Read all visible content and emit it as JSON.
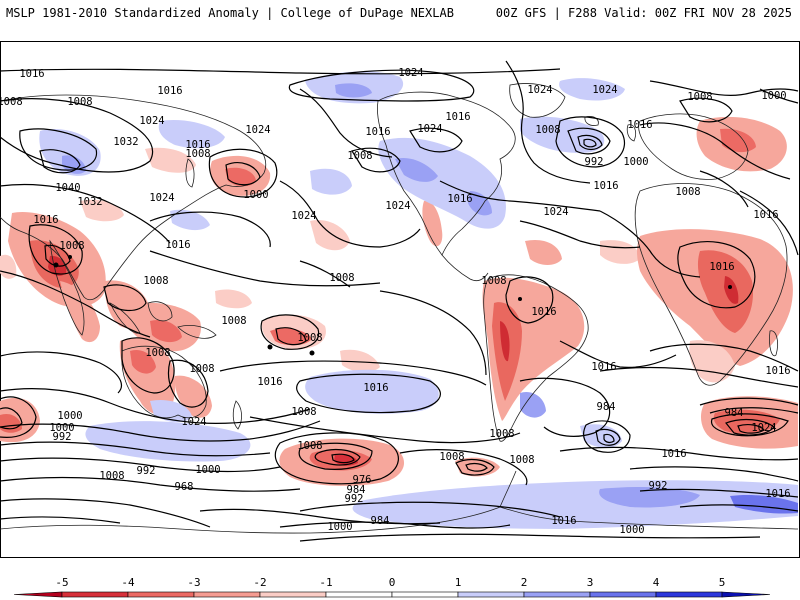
{
  "header": {
    "left": "MSLP 1981-2010 Standardized Anomaly | College of DuPage NEXLAB",
    "right": "00Z GFS | F288 Valid: 00Z FRI NOV 28 2025"
  },
  "map": {
    "contour_labels": [
      {
        "id": "L1",
        "value": "1016"
      },
      {
        "id": "L2",
        "value": "1024"
      },
      {
        "id": "L3",
        "value": "1016"
      },
      {
        "id": "L4",
        "value": "1008"
      },
      {
        "id": "L5",
        "value": "1024"
      },
      {
        "id": "L6",
        "value": "1024"
      },
      {
        "id": "L7",
        "value": "1032"
      },
      {
        "id": "L8",
        "value": "1016"
      },
      {
        "id": "L9",
        "value": "1008"
      },
      {
        "id": "L10",
        "value": "1024"
      },
      {
        "id": "L11",
        "value": "1024"
      },
      {
        "id": "L12",
        "value": "1040"
      },
      {
        "id": "L13",
        "value": "1032"
      },
      {
        "id": "L14",
        "value": "1024"
      },
      {
        "id": "L15",
        "value": "1000"
      },
      {
        "id": "L16",
        "value": "1008"
      },
      {
        "id": "L17",
        "value": "1016"
      },
      {
        "id": "L18",
        "value": "1024"
      },
      {
        "id": "L19",
        "value": "1016"
      },
      {
        "id": "L20",
        "value": "1016"
      },
      {
        "id": "L21",
        "value": "1024"
      },
      {
        "id": "L22",
        "value": "1024"
      },
      {
        "id": "L23",
        "value": "1008"
      },
      {
        "id": "L24",
        "value": "1016"
      },
      {
        "id": "L25",
        "value": "1008"
      },
      {
        "id": "L26",
        "value": "992"
      },
      {
        "id": "L27",
        "value": "1000"
      },
      {
        "id": "L28",
        "value": "1016"
      },
      {
        "id": "L29",
        "value": "1024"
      },
      {
        "id": "L30",
        "value": "1008"
      },
      {
        "id": "L31",
        "value": "1000"
      },
      {
        "id": "L32",
        "value": "1016"
      },
      {
        "id": "L33",
        "value": "1008"
      },
      {
        "id": "L34",
        "value": "1016"
      },
      {
        "id": "L35",
        "value": "1016"
      },
      {
        "id": "L36",
        "value": "1008"
      },
      {
        "id": "L37",
        "value": "1008"
      },
      {
        "id": "L38",
        "value": "1008"
      },
      {
        "id": "L39",
        "value": "1008"
      },
      {
        "id": "L40",
        "value": "1008"
      },
      {
        "id": "L41",
        "value": "1008"
      },
      {
        "id": "L42",
        "value": "1016"
      },
      {
        "id": "L43",
        "value": "1008"
      },
      {
        "id": "L44",
        "value": "1008"
      },
      {
        "id": "L45",
        "value": "1016"
      },
      {
        "id": "L46",
        "value": "1016"
      },
      {
        "id": "L47",
        "value": "1024"
      },
      {
        "id": "L48",
        "value": "1016"
      },
      {
        "id": "L49",
        "value": "1008"
      },
      {
        "id": "L50",
        "value": "1016"
      },
      {
        "id": "L51",
        "value": "1016"
      },
      {
        "id": "L52",
        "value": "1000"
      },
      {
        "id": "L53",
        "value": "1008"
      },
      {
        "id": "L54",
        "value": "984"
      },
      {
        "id": "L55",
        "value": "1008"
      },
      {
        "id": "L56",
        "value": "1000"
      },
      {
        "id": "L57",
        "value": "992"
      },
      {
        "id": "L58",
        "value": "992"
      },
      {
        "id": "L59",
        "value": "1000"
      },
      {
        "id": "L60",
        "value": "1008"
      },
      {
        "id": "L61",
        "value": "968"
      },
      {
        "id": "L62",
        "value": "976"
      },
      {
        "id": "L63",
        "value": "984"
      },
      {
        "id": "L64",
        "value": "992"
      },
      {
        "id": "L65",
        "value": "1008"
      },
      {
        "id": "L66",
        "value": "1000"
      },
      {
        "id": "L67",
        "value": "984"
      },
      {
        "id": "L68",
        "value": "1008"
      },
      {
        "id": "L69",
        "value": "1016"
      },
      {
        "id": "L70",
        "value": "1000"
      },
      {
        "id": "L71",
        "value": "1016"
      },
      {
        "id": "L72",
        "value": "992"
      },
      {
        "id": "L73",
        "value": "984"
      },
      {
        "id": "L74",
        "value": "1024"
      },
      {
        "id": "L75",
        "value": "1016"
      }
    ]
  },
  "colorbar": {
    "ticks": [
      "-5",
      "-4",
      "-3",
      "-2",
      "-1",
      "0",
      "1",
      "2",
      "3",
      "4",
      "5"
    ],
    "colors": [
      "#b4001e",
      "#d7303a",
      "#ec6a64",
      "#f59c92",
      "#fbcdc6",
      "#ffffff",
      "#ffffff",
      "#c9cdfa",
      "#9aa1f4",
      "#6a73ec",
      "#2d38dc",
      "#0a10b0"
    ]
  }
}
